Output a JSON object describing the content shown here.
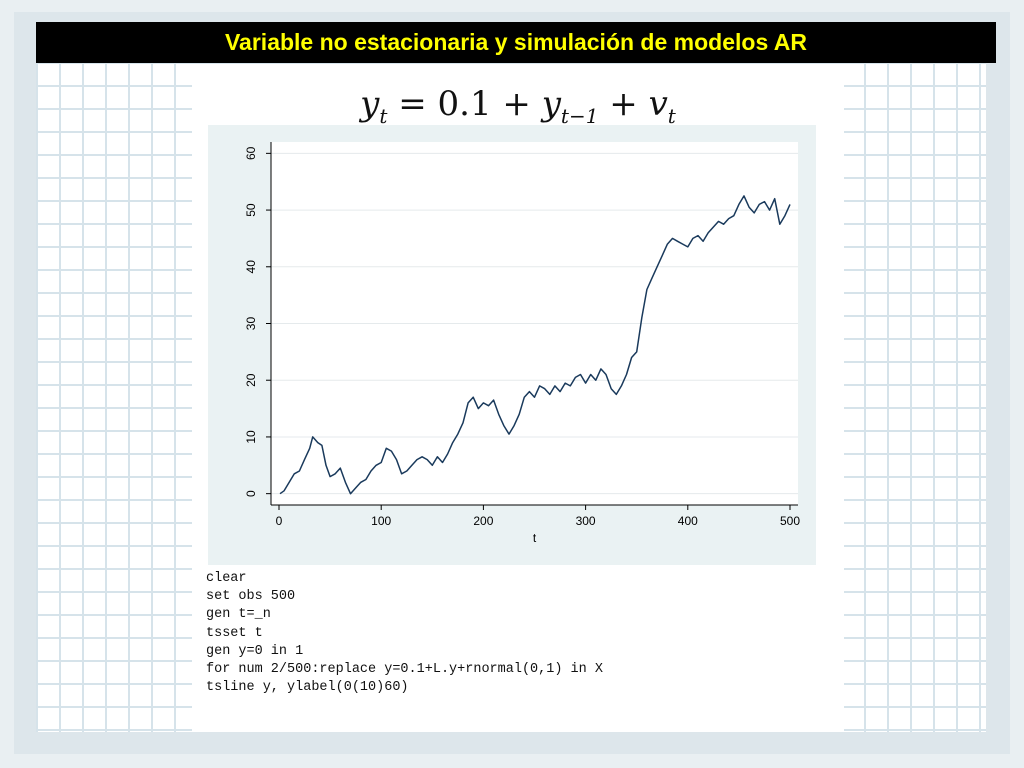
{
  "slide": {
    "title": "Variable no estacionaria y simulación de modelos AR",
    "equation": {
      "lhs": "y",
      "lhs_sub": "t",
      "equals": " = 0.1 + ",
      "term": "y",
      "term_sub": "t−1",
      "plus": " + ",
      "noise": "v",
      "noise_sub": "t"
    },
    "code_lines": [
      "clear",
      "set obs 500",
      "gen t=_n",
      "tsset t",
      "gen y=0 in 1",
      "for num 2/500:replace y=0.1+L.y+rnormal(0,1) in X",
      "tsline y, ylabel(0(10)60)"
    ]
  },
  "colors": {
    "title_bg": "#000000",
    "title_text": "#ffff00",
    "plot_bg": "#ffffff",
    "chart_frame_bg": "#eaf2f3",
    "line": "#1a3a5c",
    "gridline": "#e5eaec"
  },
  "chart_data": {
    "type": "line",
    "title": "",
    "xlabel": "t",
    "ylabel": "",
    "xlim": [
      0,
      500
    ],
    "ylim": [
      -2,
      62
    ],
    "xticks": [
      0,
      100,
      200,
      300,
      400,
      500
    ],
    "yticks": [
      0,
      10,
      20,
      30,
      40,
      50,
      60
    ],
    "grid": true,
    "series": [
      {
        "values_xy": [
          [
            1,
            0
          ],
          [
            5,
            0.5
          ],
          [
            10,
            2
          ],
          [
            15,
            3.5
          ],
          [
            20,
            4
          ],
          [
            25,
            6
          ],
          [
            30,
            8
          ],
          [
            33,
            10
          ],
          [
            38,
            9
          ],
          [
            42,
            8.5
          ],
          [
            46,
            5
          ],
          [
            50,
            3
          ],
          [
            55,
            3.5
          ],
          [
            60,
            4.5
          ],
          [
            65,
            2
          ],
          [
            70,
            0
          ],
          [
            75,
            1
          ],
          [
            80,
            2
          ],
          [
            85,
            2.5
          ],
          [
            90,
            4
          ],
          [
            95,
            5
          ],
          [
            100,
            5.5
          ],
          [
            105,
            8
          ],
          [
            110,
            7.5
          ],
          [
            115,
            6
          ],
          [
            120,
            3.5
          ],
          [
            125,
            4
          ],
          [
            130,
            5
          ],
          [
            135,
            6
          ],
          [
            140,
            6.5
          ],
          [
            145,
            6
          ],
          [
            150,
            5
          ],
          [
            155,
            6.5
          ],
          [
            160,
            5.5
          ],
          [
            165,
            7
          ],
          [
            170,
            9
          ],
          [
            175,
            10.5
          ],
          [
            180,
            12.5
          ],
          [
            185,
            16
          ],
          [
            190,
            17
          ],
          [
            195,
            15
          ],
          [
            200,
            16
          ],
          [
            205,
            15.5
          ],
          [
            210,
            16.5
          ],
          [
            215,
            14
          ],
          [
            220,
            12
          ],
          [
            225,
            10.5
          ],
          [
            230,
            12
          ],
          [
            235,
            14
          ],
          [
            240,
            17
          ],
          [
            245,
            18
          ],
          [
            250,
            17
          ],
          [
            255,
            19
          ],
          [
            260,
            18.5
          ],
          [
            265,
            17.5
          ],
          [
            270,
            19
          ],
          [
            275,
            18
          ],
          [
            280,
            19.5
          ],
          [
            285,
            19
          ],
          [
            290,
            20.5
          ],
          [
            295,
            21
          ],
          [
            300,
            19.5
          ],
          [
            305,
            21
          ],
          [
            310,
            20
          ],
          [
            315,
            22
          ],
          [
            320,
            21
          ],
          [
            325,
            18.5
          ],
          [
            330,
            17.5
          ],
          [
            335,
            19
          ],
          [
            340,
            21
          ],
          [
            345,
            24
          ],
          [
            350,
            25
          ],
          [
            355,
            31
          ],
          [
            360,
            36
          ],
          [
            365,
            38
          ],
          [
            370,
            40
          ],
          [
            375,
            42
          ],
          [
            380,
            44
          ],
          [
            385,
            45
          ],
          [
            390,
            44.5
          ],
          [
            395,
            44
          ],
          [
            400,
            43.5
          ],
          [
            405,
            45
          ],
          [
            410,
            45.5
          ],
          [
            415,
            44.5
          ],
          [
            420,
            46
          ],
          [
            425,
            47
          ],
          [
            430,
            48
          ],
          [
            435,
            47.5
          ],
          [
            440,
            48.5
          ],
          [
            445,
            49
          ],
          [
            450,
            51
          ],
          [
            455,
            52.5
          ],
          [
            460,
            50.5
          ],
          [
            465,
            49.5
          ],
          [
            470,
            51
          ],
          [
            475,
            51.5
          ],
          [
            480,
            50
          ],
          [
            485,
            52
          ],
          [
            490,
            47.5
          ],
          [
            495,
            49
          ],
          [
            500,
            51
          ]
        ]
      }
    ]
  }
}
